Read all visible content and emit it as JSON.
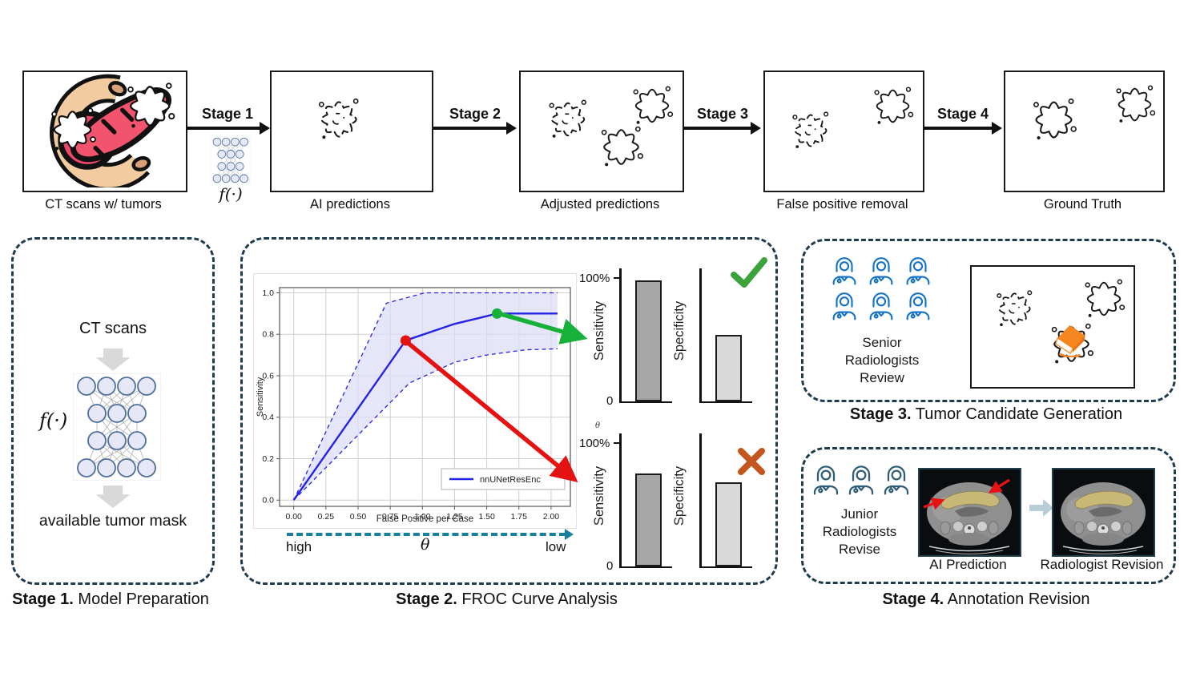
{
  "pipeline": {
    "boxes": [
      "CT scans w/ tumors",
      "AI predictions",
      "Adjusted predictions",
      "False positive removal",
      "Ground Truth"
    ],
    "stage_arrows": [
      "Stage 1",
      "Stage 2",
      "Stage 3",
      "Stage 4"
    ],
    "model_fn_label": "f(·)"
  },
  "stage1_panel": {
    "caption_prefix": "Stage 1.",
    "caption_text": " Model Preparation",
    "input_label": "CT scans",
    "fn_label": "f(·)",
    "output_label": "available tumor mask"
  },
  "stage2_panel": {
    "caption_prefix": "Stage 2.",
    "caption_text": " FROC Curve Analysis",
    "threshold_axis": {
      "left": "high",
      "symbol": "θ",
      "right": "low"
    }
  },
  "stage3_panel": {
    "caption_prefix": "Stage 3.",
    "caption_text": " Tumor Candidate Generation",
    "reviewers_label": "Senior\nRadiologists\nReview",
    "reviewer_count": 6
  },
  "stage4_panel": {
    "caption_prefix": "Stage 4.",
    "caption_text": " Annotation Revision",
    "reviewers_label": "Junior\nRadiologists\nRevise",
    "reviewer_count": 3,
    "image1_label": "AI Prediction",
    "image2_label": "Radiologist Revision"
  },
  "chart_data": [
    {
      "type": "line",
      "title": "",
      "xlabel": "False Positive per Case",
      "ylabel": "Sensitivity",
      "xticks": [
        0.0,
        0.25,
        0.5,
        0.75,
        1.0,
        1.25,
        1.5,
        1.75,
        2.0
      ],
      "yticks": [
        0.0,
        0.2,
        0.4,
        0.6,
        0.8,
        1.0
      ],
      "xlim": [
        -0.11,
        2.15
      ],
      "ylim": [
        -0.03,
        1.025
      ],
      "grid": true,
      "legend": {
        "label": "nnUNetResEnc",
        "position": "lower right"
      },
      "series": {
        "name": "nnUNetResEnc",
        "color": "#2323e6",
        "x": [
          0.0,
          0.87,
          1.25,
          1.45,
          1.58,
          2.05
        ],
        "y": [
          0.0,
          0.77,
          0.85,
          0.88,
          0.9,
          0.9
        ]
      },
      "confidence_band": {
        "fill": "#dcdcf8",
        "upper_x": [
          0.0,
          0.72,
          1.02,
          2.05
        ],
        "upper_y": [
          0.0,
          0.95,
          1.0,
          1.0
        ],
        "lower_x": [
          0.0,
          0.9,
          1.25,
          1.5,
          1.8,
          2.05
        ],
        "lower_y": [
          0.0,
          0.565,
          0.665,
          0.7,
          0.725,
          0.73
        ]
      },
      "markers": [
        {
          "x": 0.87,
          "y": 0.77,
          "color": "#e51212",
          "meaning": "rejected operating point"
        },
        {
          "x": 1.58,
          "y": 0.9,
          "color": "#17b13a",
          "meaning": "accepted operating point"
        }
      ]
    },
    {
      "type": "bar",
      "categories": [
        "Sensitivity",
        "Specificity"
      ],
      "values": [
        96,
        53
      ],
      "bar_colors": [
        "#a6a6a6",
        "#d9d9d9"
      ],
      "ymax_label": "100%",
      "ymin_label": "0",
      "theta_note": "",
      "verdict": "accepted"
    },
    {
      "type": "bar",
      "categories": [
        "Sensitivity",
        "Specificity"
      ],
      "values": [
        74,
        67
      ],
      "bar_colors": [
        "#a6a6a6",
        "#d9d9d9"
      ],
      "ymax_label": "100%",
      "ymin_label": "0",
      "theta_note": "θ",
      "verdict": "rejected"
    }
  ],
  "colors": {
    "panel_border": "#1d3c4e",
    "threshold_axis": "#17809d",
    "curve": "#2323e6",
    "confidence_band": "#dcdcf8",
    "accept_marker": "#17b13a",
    "reject_marker": "#e51212",
    "check": "#3ba23c",
    "cross": "#c4561d",
    "senior_doctor": "#1572c5",
    "junior_doctor": "#2f5d76",
    "eraser": "#f6861f",
    "ai_mask_overlay": "#c7b878"
  }
}
